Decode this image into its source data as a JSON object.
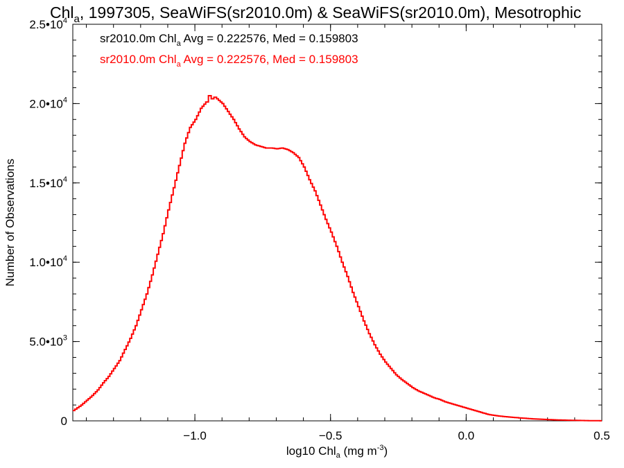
{
  "chart_data": {
    "type": "line",
    "title": {
      "main": "Chl",
      "sub": "a",
      "rest": ", 1997305, SeaWiFS(sr2010.0m) & SeaWiFS(sr2010.0m), Mesotrophic"
    },
    "xlabel": {
      "pre": "log10 Chl",
      "sub": "a",
      "mid": " (mg m",
      "sup": "-3",
      "post": ")"
    },
    "ylabel": "Number of Observations",
    "xlim": [
      -1.45,
      0.5
    ],
    "ylim": [
      0,
      25000
    ],
    "grid": false,
    "x_ticks": [
      {
        "value": -1.0,
        "label": "−1.0"
      },
      {
        "value": -0.5,
        "label": "−0.5"
      },
      {
        "value": 0.0,
        "label": "0.0"
      },
      {
        "value": 0.5,
        "label": "0.5"
      }
    ],
    "y_ticks": [
      {
        "value": 0,
        "mant": "0",
        "exp": ""
      },
      {
        "value": 5000,
        "mant": "5.0•10",
        "exp": "3"
      },
      {
        "value": 10000,
        "mant": "1.0•10",
        "exp": "4"
      },
      {
        "value": 15000,
        "mant": "1.5•10",
        "exp": "4"
      },
      {
        "value": 20000,
        "mant": "2.0•10",
        "exp": "4"
      },
      {
        "value": 25000,
        "mant": "2.5•10",
        "exp": "4"
      }
    ],
    "x_minor_step": 0.1,
    "y_minor_step": 1000,
    "legend_placement": "top-left",
    "legend": [
      {
        "pre": "sr2010.0m Chl",
        "sub": "a",
        "post": " Avg = 0.222576, Med = 0.159803",
        "color": "#000000"
      },
      {
        "pre": "sr2010.0m Chl",
        "sub": "a",
        "post": " Avg = 0.222576, Med = 0.159803",
        "color": "#ff0000"
      }
    ],
    "series": [
      {
        "color": "#ff0000",
        "points": [
          [
            -1.45,
            650
          ],
          [
            -1.42,
            1000
          ],
          [
            -1.4,
            1300
          ],
          [
            -1.38,
            1600
          ],
          [
            -1.36,
            1950
          ],
          [
            -1.34,
            2400
          ],
          [
            -1.32,
            2800
          ],
          [
            -1.3,
            3300
          ],
          [
            -1.28,
            3800
          ],
          [
            -1.26,
            4500
          ],
          [
            -1.24,
            5200
          ],
          [
            -1.22,
            6000
          ],
          [
            -1.2,
            7000
          ],
          [
            -1.18,
            8000
          ],
          [
            -1.16,
            9200
          ],
          [
            -1.14,
            10500
          ],
          [
            -1.12,
            11800
          ],
          [
            -1.1,
            13300
          ],
          [
            -1.08,
            14700
          ],
          [
            -1.06,
            16100
          ],
          [
            -1.04,
            17500
          ],
          [
            -1.02,
            18500
          ],
          [
            -1.0,
            19000
          ],
          [
            -0.98,
            19700
          ],
          [
            -0.96,
            20100
          ],
          [
            -0.95,
            20500
          ],
          [
            -0.94,
            20300
          ],
          [
            -0.93,
            20400
          ],
          [
            -0.92,
            20300
          ],
          [
            -0.9,
            20000
          ],
          [
            -0.88,
            19500
          ],
          [
            -0.86,
            19000
          ],
          [
            -0.84,
            18400
          ],
          [
            -0.82,
            17900
          ],
          [
            -0.8,
            17600
          ],
          [
            -0.78,
            17400
          ],
          [
            -0.76,
            17300
          ],
          [
            -0.74,
            17200
          ],
          [
            -0.72,
            17200
          ],
          [
            -0.7,
            17150
          ],
          [
            -0.68,
            17200
          ],
          [
            -0.66,
            17100
          ],
          [
            -0.64,
            16900
          ],
          [
            -0.62,
            16600
          ],
          [
            -0.6,
            16000
          ],
          [
            -0.58,
            15200
          ],
          [
            -0.56,
            14500
          ],
          [
            -0.54,
            13600
          ],
          [
            -0.52,
            12700
          ],
          [
            -0.5,
            11900
          ],
          [
            -0.48,
            11000
          ],
          [
            -0.46,
            10000
          ],
          [
            -0.44,
            9100
          ],
          [
            -0.42,
            8100
          ],
          [
            -0.4,
            7200
          ],
          [
            -0.38,
            6300
          ],
          [
            -0.36,
            5500
          ],
          [
            -0.34,
            4800
          ],
          [
            -0.32,
            4200
          ],
          [
            -0.3,
            3700
          ],
          [
            -0.28,
            3300
          ],
          [
            -0.26,
            2900
          ],
          [
            -0.24,
            2600
          ],
          [
            -0.22,
            2350
          ],
          [
            -0.2,
            2100
          ],
          [
            -0.18,
            1900
          ],
          [
            -0.16,
            1750
          ],
          [
            -0.14,
            1600
          ],
          [
            -0.12,
            1450
          ],
          [
            -0.1,
            1350
          ],
          [
            -0.08,
            1200
          ],
          [
            -0.06,
            1100
          ],
          [
            -0.04,
            1000
          ],
          [
            -0.02,
            900
          ],
          [
            0.0,
            800
          ],
          [
            0.02,
            700
          ],
          [
            0.04,
            600
          ],
          [
            0.06,
            500
          ],
          [
            0.08,
            400
          ],
          [
            0.1,
            350
          ],
          [
            0.12,
            300
          ],
          [
            0.15,
            250
          ],
          [
            0.2,
            180
          ],
          [
            0.25,
            120
          ],
          [
            0.3,
            80
          ],
          [
            0.35,
            50
          ],
          [
            0.4,
            30
          ],
          [
            0.45,
            15
          ],
          [
            0.5,
            5
          ]
        ]
      }
    ]
  }
}
